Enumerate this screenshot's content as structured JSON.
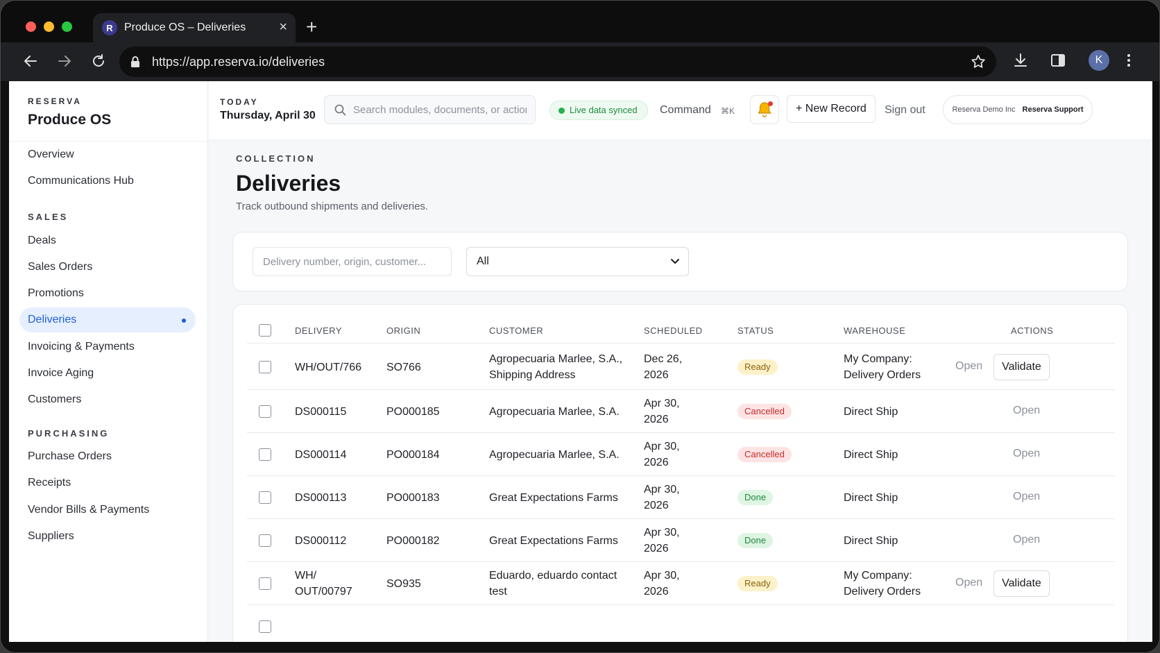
{
  "browser": {
    "tab_favicon": "R",
    "tab_title": "Produce OS – Deliveries",
    "url": "https://app.reserva.io/deliveries",
    "profile_initial": "K",
    "icons": [
      "back-icon",
      "forward-icon",
      "reload-icon",
      "lock-icon",
      "star-icon",
      "download-icon",
      "sidepanel-icon",
      "more-icon"
    ]
  },
  "brand": {
    "eyebrow": "RESERVA",
    "name": "Produce OS"
  },
  "sidebar": {
    "top_items": [
      {
        "label": "Overview"
      },
      {
        "label": "Communications Hub"
      }
    ],
    "sales_title": "SALES",
    "sales_items": [
      {
        "label": "Deals"
      },
      {
        "label": "Sales Orders"
      },
      {
        "label": "Promotions"
      },
      {
        "label": "Deliveries",
        "active": true
      },
      {
        "label": "Invoicing & Payments"
      },
      {
        "label": "Invoice Aging"
      },
      {
        "label": "Customers"
      }
    ],
    "purchasing_title": "PURCHASING",
    "purchasing_items": [
      {
        "label": "Purchase Orders"
      },
      {
        "label": "Receipts"
      },
      {
        "label": "Vendor Bills & Payments"
      },
      {
        "label": "Suppliers"
      }
    ]
  },
  "header": {
    "today_label": "TODAY",
    "today_date": "Thursday, April 30",
    "search_placeholder": "Search modules, documents, or actions",
    "live_status": "Live data synced",
    "command_label": "Command",
    "command_shortcut": "⌘K",
    "new_record": "+ New Record",
    "sign_out": "Sign out",
    "tenant_company": "Reserva Demo Inc",
    "tenant_user": "Reserva Support"
  },
  "page": {
    "eyebrow": "COLLECTION",
    "title": "Deliveries",
    "subtitle": "Track outbound shipments and deliveries."
  },
  "filters": {
    "search_placeholder": "Delivery number, origin, customer...",
    "status_value": "All"
  },
  "table": {
    "columns": [
      "DELIVERY",
      "ORIGIN",
      "CUSTOMER",
      "SCHEDULED",
      "STATUS",
      "WAREHOUSE",
      "ACTIONS"
    ],
    "open_label": "Open",
    "validate_label": "Validate",
    "rows": [
      {
        "delivery": [
          "WH/OUT/766"
        ],
        "origin": "SO766",
        "customer": [
          "Agropecuaria Marlee, S.A.,",
          "Shipping Address"
        ],
        "scheduled": [
          "Dec 26,",
          "2026"
        ],
        "status": "Ready",
        "warehouse": [
          "My Company:",
          "Delivery Orders"
        ],
        "validate": true
      },
      {
        "delivery": [
          "DS000115"
        ],
        "origin": "PO000185",
        "customer": [
          "Agropecuaria Marlee, S.A."
        ],
        "scheduled": [
          "Apr 30,",
          "2026"
        ],
        "status": "Cancelled",
        "warehouse": [
          "Direct Ship"
        ],
        "validate": false
      },
      {
        "delivery": [
          "DS000114"
        ],
        "origin": "PO000184",
        "customer": [
          "Agropecuaria Marlee, S.A."
        ],
        "scheduled": [
          "Apr 30,",
          "2026"
        ],
        "status": "Cancelled",
        "warehouse": [
          "Direct Ship"
        ],
        "validate": false
      },
      {
        "delivery": [
          "DS000113"
        ],
        "origin": "PO000183",
        "customer": [
          "Great Expectations Farms"
        ],
        "scheduled": [
          "Apr 30,",
          "2026"
        ],
        "status": "Done",
        "warehouse": [
          "Direct Ship"
        ],
        "validate": false
      },
      {
        "delivery": [
          "DS000112"
        ],
        "origin": "PO000182",
        "customer": [
          "Great Expectations Farms"
        ],
        "scheduled": [
          "Apr 30,",
          "2026"
        ],
        "status": "Done",
        "warehouse": [
          "Direct Ship"
        ],
        "validate": false
      },
      {
        "delivery": [
          "WH/",
          "OUT/00797"
        ],
        "origin": "SO935",
        "customer": [
          "Eduardo, eduardo contact",
          "test"
        ],
        "scheduled": [
          "Apr 30,",
          "2026"
        ],
        "status": "Ready",
        "warehouse": [
          "My Company:",
          "Delivery Orders"
        ],
        "validate": true
      }
    ]
  },
  "colors": {
    "accent": "#1f5fd6",
    "ready": "#fdf1c9",
    "cancelled": "#fde3e3",
    "done": "#dff5e4",
    "live": "#23b14d"
  }
}
